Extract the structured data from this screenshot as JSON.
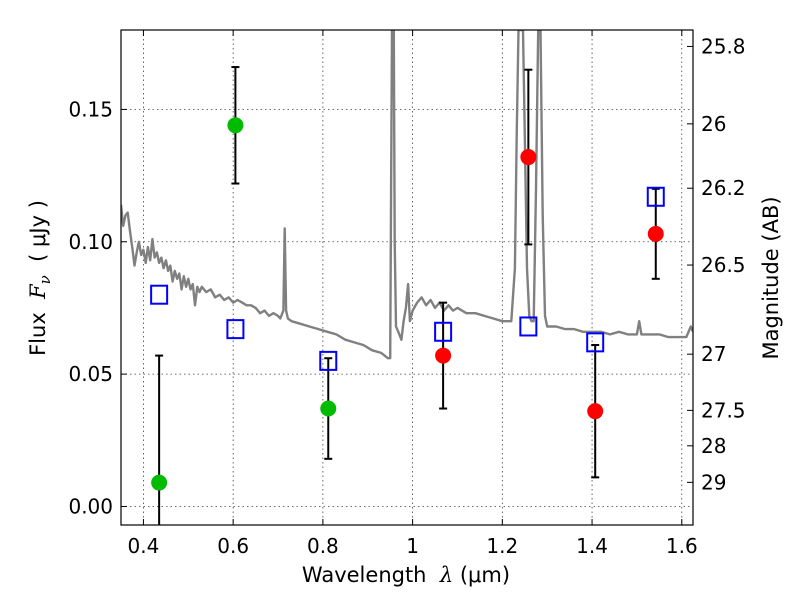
{
  "chart_data": {
    "type": "scatter",
    "title": "",
    "xlabel": {
      "main": "Wavelength",
      "symbol": "λ",
      "unit_open": " (",
      "unit": "μm",
      "unit_close": ")"
    },
    "ylabel": {
      "main": "Flux",
      "symbol": "F",
      "subscript": "ν",
      "unit_open": "( ",
      "unit": "μJy",
      "unit_close": " )"
    },
    "y2label": "Magnitude (AB)",
    "xlim": [
      0.35,
      1.625
    ],
    "ylim": [
      -0.007,
      0.18
    ],
    "x_ticks": [
      {
        "value": 0.4,
        "label": "0.4"
      },
      {
        "value": 0.6,
        "label": "0.6"
      },
      {
        "value": 0.8,
        "label": "0.8"
      },
      {
        "value": 1.0,
        "label": "1"
      },
      {
        "value": 1.2,
        "label": "1.2"
      },
      {
        "value": 1.4,
        "label": "1.4"
      },
      {
        "value": 1.6,
        "label": "1.6"
      }
    ],
    "y_ticks": [
      {
        "value": 0.0,
        "label": "0.00"
      },
      {
        "value": 0.05,
        "label": "0.05"
      },
      {
        "value": 0.1,
        "label": "0.10"
      },
      {
        "value": 0.15,
        "label": "0.15"
      }
    ],
    "y2_ticks": [
      {
        "value": 25.8,
        "label": "25.8"
      },
      {
        "value": 26.0,
        "label": "26"
      },
      {
        "value": 26.2,
        "label": "26.2"
      },
      {
        "value": 26.5,
        "label": "26.5"
      },
      {
        "value": 27.0,
        "label": "27"
      },
      {
        "value": 27.5,
        "label": "27.5"
      },
      {
        "value": 28.0,
        "label": "28"
      },
      {
        "value": 29.0,
        "label": "29"
      }
    ],
    "grid": true,
    "colors": {
      "spectrum": "#808080",
      "model": "#0000ff",
      "optical": "#00bb00",
      "nir": "#ff0000",
      "errorbar": "#000000"
    },
    "spectrum": [
      [
        0.35,
        0.114
      ],
      [
        0.355,
        0.106
      ],
      [
        0.36,
        0.11
      ],
      [
        0.365,
        0.111
      ],
      [
        0.37,
        0.104
      ],
      [
        0.375,
        0.098
      ],
      [
        0.38,
        0.091
      ],
      [
        0.385,
        0.096
      ],
      [
        0.39,
        0.1
      ],
      [
        0.395,
        0.095
      ],
      [
        0.4,
        0.097
      ],
      [
        0.405,
        0.092
      ],
      [
        0.41,
        0.098
      ],
      [
        0.415,
        0.093
      ],
      [
        0.42,
        0.101
      ],
      [
        0.425,
        0.094
      ],
      [
        0.43,
        0.096
      ],
      [
        0.435,
        0.092
      ],
      [
        0.44,
        0.094
      ],
      [
        0.445,
        0.09
      ],
      [
        0.45,
        0.093
      ],
      [
        0.455,
        0.089
      ],
      [
        0.46,
        0.091
      ],
      [
        0.465,
        0.085
      ],
      [
        0.47,
        0.089
      ],
      [
        0.475,
        0.086
      ],
      [
        0.48,
        0.088
      ],
      [
        0.485,
        0.082
      ],
      [
        0.49,
        0.087
      ],
      [
        0.495,
        0.083
      ],
      [
        0.5,
        0.086
      ],
      [
        0.505,
        0.082
      ],
      [
        0.51,
        0.084
      ],
      [
        0.515,
        0.076
      ],
      [
        0.52,
        0.083
      ],
      [
        0.525,
        0.081
      ],
      [
        0.53,
        0.083
      ],
      [
        0.54,
        0.081
      ],
      [
        0.55,
        0.082
      ],
      [
        0.56,
        0.079
      ],
      [
        0.57,
        0.08
      ],
      [
        0.58,
        0.078
      ],
      [
        0.59,
        0.079
      ],
      [
        0.6,
        0.077
      ],
      [
        0.61,
        0.078
      ],
      [
        0.62,
        0.077
      ],
      [
        0.63,
        0.076
      ],
      [
        0.64,
        0.076
      ],
      [
        0.65,
        0.075
      ],
      [
        0.66,
        0.073
      ],
      [
        0.67,
        0.074
      ],
      [
        0.68,
        0.072
      ],
      [
        0.69,
        0.073
      ],
      [
        0.7,
        0.072
      ],
      [
        0.705,
        0.071
      ],
      [
        0.712,
        0.074
      ],
      [
        0.715,
        0.105
      ],
      [
        0.718,
        0.074
      ],
      [
        0.722,
        0.071
      ],
      [
        0.73,
        0.07
      ],
      [
        0.75,
        0.069
      ],
      [
        0.77,
        0.068
      ],
      [
        0.79,
        0.067
      ],
      [
        0.81,
        0.066
      ],
      [
        0.83,
        0.065
      ],
      [
        0.85,
        0.063
      ],
      [
        0.87,
        0.062
      ],
      [
        0.89,
        0.061
      ],
      [
        0.91,
        0.059
      ],
      [
        0.93,
        0.058
      ],
      [
        0.945,
        0.056
      ],
      [
        0.95,
        0.056
      ],
      [
        0.952,
        0.12
      ],
      [
        0.954,
        0.18
      ],
      [
        0.958,
        0.18
      ],
      [
        0.96,
        0.1
      ],
      [
        0.963,
        0.068
      ],
      [
        0.968,
        0.066
      ],
      [
        0.975,
        0.063
      ],
      [
        0.98,
        0.07
      ],
      [
        0.985,
        0.075
      ],
      [
        0.99,
        0.084
      ],
      [
        0.994,
        0.07
      ],
      [
        1.0,
        0.074
      ],
      [
        1.01,
        0.077
      ],
      [
        1.02,
        0.079
      ],
      [
        1.03,
        0.076
      ],
      [
        1.04,
        0.078
      ],
      [
        1.05,
        0.075
      ],
      [
        1.06,
        0.077
      ],
      [
        1.07,
        0.074
      ],
      [
        1.08,
        0.076
      ],
      [
        1.09,
        0.074
      ],
      [
        1.1,
        0.075
      ],
      [
        1.12,
        0.073
      ],
      [
        1.14,
        0.073
      ],
      [
        1.16,
        0.072
      ],
      [
        1.18,
        0.071
      ],
      [
        1.2,
        0.07
      ],
      [
        1.22,
        0.07
      ],
      [
        1.228,
        0.09
      ],
      [
        1.232,
        0.14
      ],
      [
        1.236,
        0.18
      ],
      [
        1.246,
        0.18
      ],
      [
        1.25,
        0.14
      ],
      [
        1.255,
        0.09
      ],
      [
        1.26,
        0.072
      ],
      [
        1.265,
        0.07
      ],
      [
        1.27,
        0.07
      ],
      [
        1.275,
        0.12
      ],
      [
        1.28,
        0.18
      ],
      [
        1.285,
        0.18
      ],
      [
        1.29,
        0.11
      ],
      [
        1.295,
        0.072
      ],
      [
        1.3,
        0.068
      ],
      [
        1.32,
        0.068
      ],
      [
        1.34,
        0.067
      ],
      [
        1.36,
        0.067
      ],
      [
        1.38,
        0.066
      ],
      [
        1.4,
        0.066
      ],
      [
        1.42,
        0.066
      ],
      [
        1.44,
        0.065
      ],
      [
        1.46,
        0.066
      ],
      [
        1.48,
        0.065
      ],
      [
        1.5,
        0.065
      ],
      [
        1.505,
        0.07
      ],
      [
        1.51,
        0.065
      ],
      [
        1.53,
        0.065
      ],
      [
        1.55,
        0.065
      ],
      [
        1.57,
        0.064
      ],
      [
        1.59,
        0.064
      ],
      [
        1.61,
        0.064
      ],
      [
        1.62,
        0.068
      ],
      [
        1.625,
        0.066
      ]
    ],
    "series": [
      {
        "marker": "open-square",
        "color": "#0000ff",
        "points": [
          {
            "x": 0.435,
            "y": 0.08
          },
          {
            "x": 0.605,
            "y": 0.067
          },
          {
            "x": 0.812,
            "y": 0.055
          },
          {
            "x": 1.068,
            "y": 0.066
          },
          {
            "x": 1.258,
            "y": 0.068
          },
          {
            "x": 1.407,
            "y": 0.062
          },
          {
            "x": 1.542,
            "y": 0.117
          }
        ]
      },
      {
        "marker": "filled-circle",
        "color": "#00bb00",
        "points": [
          {
            "x": 0.435,
            "y": 0.009,
            "err": 0.048
          },
          {
            "x": 0.605,
            "y": 0.144,
            "err": 0.022
          },
          {
            "x": 0.812,
            "y": 0.037,
            "err": 0.019
          }
        ]
      },
      {
        "marker": "filled-circle",
        "color": "#ff0000",
        "points": [
          {
            "x": 1.068,
            "y": 0.057,
            "err": 0.02
          },
          {
            "x": 1.258,
            "y": 0.132,
            "err": 0.033
          },
          {
            "x": 1.407,
            "y": 0.036,
            "err": 0.025
          },
          {
            "x": 1.542,
            "y": 0.103,
            "err": 0.017
          }
        ]
      }
    ]
  }
}
